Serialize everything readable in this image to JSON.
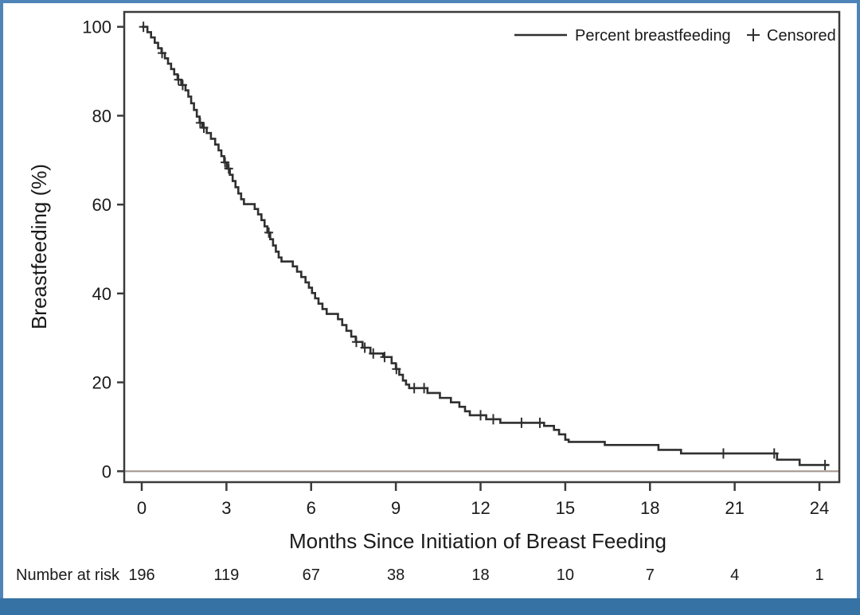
{
  "chart_data": {
    "type": "line",
    "subtype": "kaplan_meier_step_curve",
    "title": "",
    "xlabel": "Months Since Initiation of Breast Feeding",
    "ylabel": "Breastfeeding (%)",
    "xlim": [
      0,
      24
    ],
    "ylim": [
      0,
      100
    ],
    "x_ticks": [
      "0",
      "3",
      "6",
      "9",
      "12",
      "15",
      "18",
      "21",
      "24"
    ],
    "y_ticks": [
      "100",
      "80",
      "60",
      "40",
      "20",
      "0"
    ],
    "y_tick_values": [
      100,
      80,
      60,
      40,
      20,
      0
    ],
    "x_tick_values": [
      0,
      3,
      6,
      9,
      12,
      15,
      18,
      21,
      24
    ],
    "grid": false,
    "zero_reference_line": true,
    "legend": [
      {
        "label": "Percent breastfeeding",
        "marker": "line"
      },
      {
        "label": "Censored",
        "marker": "plus"
      }
    ],
    "series": [
      {
        "name": "Percent breastfeeding",
        "end_month": 24.35,
        "steps": [
          [
            0,
            100
          ],
          [
            0.2,
            98.8
          ],
          [
            0.33,
            97.6
          ],
          [
            0.46,
            96.4
          ],
          [
            0.58,
            95.2
          ],
          [
            0.7,
            94.1
          ],
          [
            0.82,
            92.9
          ],
          [
            0.93,
            91.7
          ],
          [
            1.04,
            90.5
          ],
          [
            1.15,
            89.3
          ],
          [
            1.27,
            88.1
          ],
          [
            1.4,
            86.9
          ],
          [
            1.55,
            85.7
          ],
          [
            1.65,
            84.3
          ],
          [
            1.75,
            82.8
          ],
          [
            1.85,
            81.3
          ],
          [
            1.95,
            79.8
          ],
          [
            2.05,
            78.4
          ],
          [
            2.15,
            77.3
          ],
          [
            2.3,
            76.1
          ],
          [
            2.45,
            74.8
          ],
          [
            2.6,
            73.5
          ],
          [
            2.72,
            72.2
          ],
          [
            2.82,
            70.9
          ],
          [
            2.92,
            69.5
          ],
          [
            3.02,
            68.1
          ],
          [
            3.12,
            66.7
          ],
          [
            3.22,
            65.3
          ],
          [
            3.32,
            63.9
          ],
          [
            3.42,
            62.5
          ],
          [
            3.52,
            61.2
          ],
          [
            3.62,
            60.1
          ],
          [
            4.0,
            59.0
          ],
          [
            4.12,
            57.8
          ],
          [
            4.24,
            56.5
          ],
          [
            4.35,
            55.1
          ],
          [
            4.45,
            53.7
          ],
          [
            4.55,
            52.2
          ],
          [
            4.65,
            50.8
          ],
          [
            4.75,
            49.4
          ],
          [
            4.85,
            48.1
          ],
          [
            4.95,
            47.2
          ],
          [
            5.35,
            46.1
          ],
          [
            5.5,
            44.9
          ],
          [
            5.65,
            43.7
          ],
          [
            5.8,
            42.5
          ],
          [
            5.92,
            41.3
          ],
          [
            6.03,
            40.1
          ],
          [
            6.14,
            38.9
          ],
          [
            6.26,
            37.7
          ],
          [
            6.4,
            36.5
          ],
          [
            6.55,
            35.4
          ],
          [
            6.95,
            34.2
          ],
          [
            7.1,
            32.9
          ],
          [
            7.25,
            31.6
          ],
          [
            7.42,
            30.3
          ],
          [
            7.58,
            29.1
          ],
          [
            7.82,
            27.8
          ],
          [
            8.1,
            26.5
          ],
          [
            8.55,
            25.7
          ],
          [
            8.85,
            24.3
          ],
          [
            9.0,
            23.0
          ],
          [
            9.12,
            21.7
          ],
          [
            9.25,
            20.4
          ],
          [
            9.36,
            19.5
          ],
          [
            9.47,
            18.7
          ],
          [
            10.12,
            17.6
          ],
          [
            10.56,
            16.5
          ],
          [
            10.95,
            15.5
          ],
          [
            11.25,
            14.5
          ],
          [
            11.45,
            13.5
          ],
          [
            11.62,
            12.6
          ],
          [
            12.2,
            11.7
          ],
          [
            12.7,
            10.9
          ],
          [
            14.25,
            10.2
          ],
          [
            14.6,
            9.3
          ],
          [
            14.78,
            8.3
          ],
          [
            15.0,
            7.1
          ],
          [
            15.12,
            6.6
          ],
          [
            16.4,
            5.9
          ],
          [
            18.3,
            4.8
          ],
          [
            19.1,
            4.0
          ],
          [
            22.5,
            2.6
          ],
          [
            23.3,
            1.4
          ]
        ]
      }
    ],
    "censored_months": [
      0.06,
      0.72,
      1.3,
      1.45,
      2.07,
      2.2,
      2.95,
      3.08,
      4.5,
      7.6,
      7.9,
      8.2,
      8.6,
      9.02,
      9.65,
      10.0,
      12.0,
      12.45,
      13.45,
      14.1,
      20.6,
      22.4,
      24.2
    ],
    "number_at_risk": {
      "label": "Number at risk",
      "months": [
        0,
        3,
        6,
        9,
        12,
        15,
        18,
        21,
        24
      ],
      "values": [
        "196",
        "119",
        "67",
        "38",
        "18",
        "10",
        "7",
        "4",
        "1"
      ]
    },
    "colors": {
      "curve": "#2f2f2f",
      "frame": "#3b3b3b",
      "text": "#1a1a1a",
      "zero_line": "#a5968f",
      "border_blue": "#4e84b7",
      "band_blue": "#3672a4",
      "background": "#ffffff"
    }
  }
}
